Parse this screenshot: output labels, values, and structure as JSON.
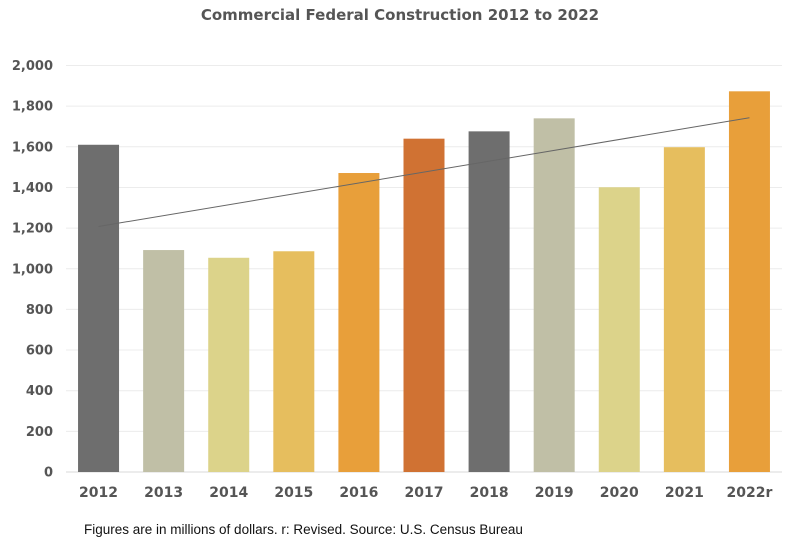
{
  "chart_data": {
    "type": "bar",
    "title": "Commercial Federal Construction 2012 to 2022",
    "xlabel": "",
    "ylabel": "",
    "categories": [
      "2012",
      "2013",
      "2014",
      "2015",
      "2016",
      "2017",
      "2018",
      "2019",
      "2020",
      "2021",
      "2022r"
    ],
    "values": [
      1610,
      1092,
      1054,
      1086,
      1471,
      1640,
      1676,
      1740,
      1401,
      1598,
      1873
    ],
    "bar_colors": [
      "#6e6e6e",
      "#c0bfa6",
      "#dcd38a",
      "#e6be5e",
      "#e89f3a",
      "#d07233",
      "#6e6e6e",
      "#c0bfa6",
      "#dcd38a",
      "#e6be5e",
      "#e89f3a"
    ],
    "ylim": [
      0,
      2000
    ],
    "yticks": [
      0,
      200,
      400,
      600,
      800,
      1000,
      1200,
      1400,
      1600,
      1800,
      2000
    ],
    "ytick_labels": [
      "0",
      "200",
      "400",
      "600",
      "800",
      "1,000",
      "1,200",
      "1,400",
      "1,600",
      "1,800",
      "2,000"
    ],
    "grid": true,
    "legend": "none",
    "trendline": {
      "type": "linear",
      "start_value": 1208,
      "end_value": 1743,
      "color": "#666666"
    },
    "footnote": "Figures are in millions of dollars. r: Revised. Source: U.S. Census Bureau"
  }
}
